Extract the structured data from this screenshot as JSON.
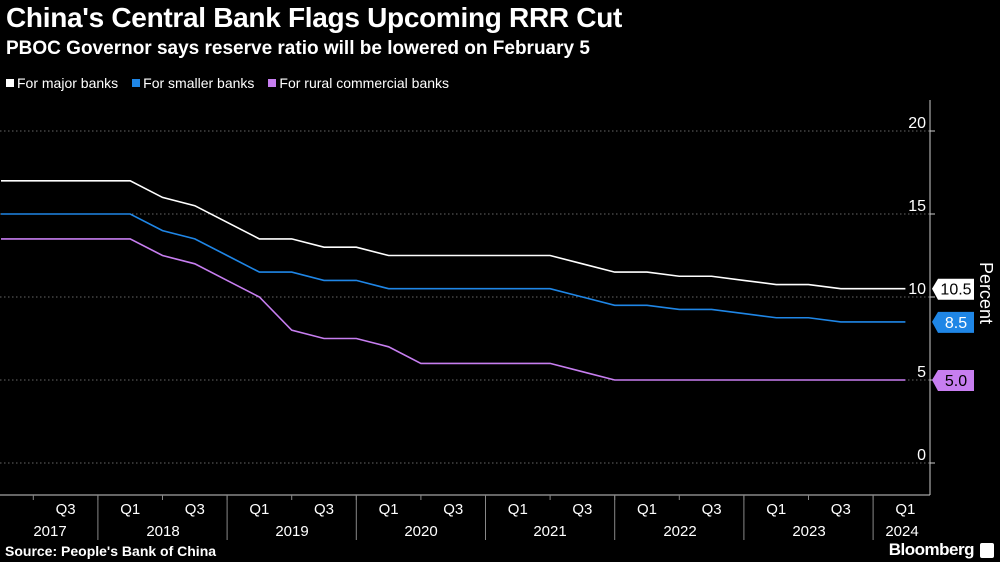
{
  "title": "China's Central Bank Flags Upcoming RRR Cut",
  "subtitle": "PBOC Governor says reserve ratio will be lowered on February 5",
  "source": "Source: People's Bank of China",
  "brand": "Bloomberg",
  "chart_data": {
    "type": "line",
    "ylabel": "Percent",
    "ylim": [
      0,
      22
    ],
    "yticks": [
      0,
      5,
      10,
      15,
      20
    ],
    "grid": "horizontal dotted",
    "legend": "top-left",
    "x": [
      "2017Q1",
      "2017Q2",
      "2017Q3",
      "2017Q4",
      "2018Q1",
      "2018Q2",
      "2018Q3",
      "2018Q4",
      "2019Q1",
      "2019Q2",
      "2019Q3",
      "2019Q4",
      "2020Q1",
      "2020Q2",
      "2020Q3",
      "2020Q4",
      "2021Q1",
      "2021Q2",
      "2021Q3",
      "2021Q4",
      "2022Q1",
      "2022Q2",
      "2022Q3",
      "2022Q4",
      "2023Q1",
      "2023Q2",
      "2023Q3",
      "2023Q4",
      "2024Q1"
    ],
    "x_tick_labels": [
      {
        "i": 2,
        "q": "Q3"
      },
      {
        "i": 4,
        "q": "Q1"
      },
      {
        "i": 6,
        "q": "Q3"
      },
      {
        "i": 8,
        "q": "Q1"
      },
      {
        "i": 10,
        "q": "Q3"
      },
      {
        "i": 12,
        "q": "Q1"
      },
      {
        "i": 14,
        "q": "Q3"
      },
      {
        "i": 16,
        "q": "Q1"
      },
      {
        "i": 18,
        "q": "Q3"
      },
      {
        "i": 20,
        "q": "Q1"
      },
      {
        "i": 22,
        "q": "Q3"
      },
      {
        "i": 24,
        "q": "Q1"
      },
      {
        "i": 26,
        "q": "Q3"
      },
      {
        "i": 28,
        "q": "Q1"
      }
    ],
    "year_labels": [
      "2017",
      "2018",
      "2019",
      "2020",
      "2021",
      "2022",
      "2023",
      "2024"
    ],
    "series": [
      {
        "name": "For major banks",
        "color": "#ffffff",
        "label_text_color": "#000000",
        "end_label": "10.5",
        "values": [
          17,
          17,
          17,
          17,
          17,
          16,
          15.5,
          14.5,
          13.5,
          13.5,
          13,
          13,
          12.5,
          12.5,
          12.5,
          12.5,
          12.5,
          12.5,
          12,
          11.5,
          11.5,
          11.25,
          11.25,
          11,
          10.75,
          10.75,
          10.5,
          10.5,
          10.5
        ]
      },
      {
        "name": "For smaller banks",
        "color": "#1f86e6",
        "label_text_color": "#ffffff",
        "end_label": "8.5",
        "values": [
          15,
          15,
          15,
          15,
          15,
          14,
          13.5,
          12.5,
          11.5,
          11.5,
          11,
          11,
          10.5,
          10.5,
          10.5,
          10.5,
          10.5,
          10.5,
          10,
          9.5,
          9.5,
          9.25,
          9.25,
          9,
          8.75,
          8.75,
          8.5,
          8.5,
          8.5
        ]
      },
      {
        "name": "For rural commercial banks",
        "color": "#c77ef0",
        "label_text_color": "#000000",
        "end_label": "5.0",
        "values": [
          13.5,
          13.5,
          13.5,
          13.5,
          13.5,
          12.5,
          12,
          11,
          10,
          8,
          7.5,
          7.5,
          7,
          6,
          6,
          6,
          6,
          6,
          5.5,
          5,
          5,
          5,
          5,
          5,
          5,
          5,
          5,
          5,
          5
        ]
      }
    ]
  }
}
